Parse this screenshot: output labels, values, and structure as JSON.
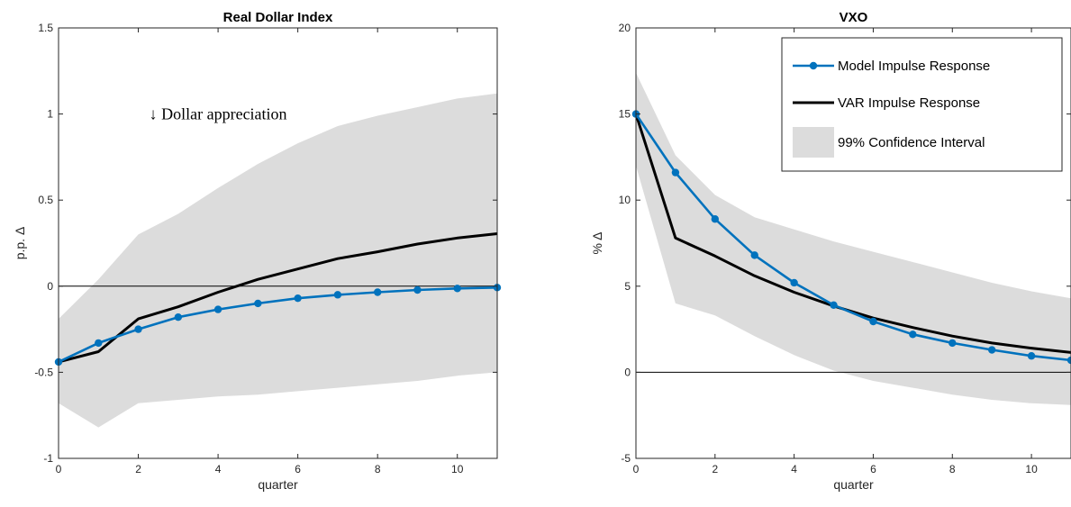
{
  "chart_data": [
    {
      "type": "line",
      "title": "Real Dollar Index",
      "xlabel": "quarter",
      "ylabel": "p.p. Δ",
      "xlim": [
        0,
        11
      ],
      "ylim": [
        -1,
        1.5
      ],
      "xticks": [
        0,
        2,
        4,
        6,
        8,
        10
      ],
      "xtick_labels": [
        "0",
        "2",
        "4",
        "6",
        "8",
        "10"
      ],
      "yticks": [
        -1,
        -0.5,
        0,
        0.5,
        1,
        1.5
      ],
      "ytick_labels": [
        "-1",
        "-0.5",
        "0",
        "0.5",
        "1",
        "1.5"
      ],
      "annotation": "↓ Dollar appreciation",
      "annotation_pos": [
        4,
        1
      ],
      "x": [
        0,
        1,
        2,
        3,
        4,
        5,
        6,
        7,
        8,
        9,
        10,
        11
      ],
      "series": [
        {
          "name": "Model Impulse Response",
          "color": "#0072BD",
          "markers": true,
          "values": [
            -0.44,
            -0.33,
            -0.25,
            -0.18,
            -0.135,
            -0.1,
            -0.07,
            -0.05,
            -0.035,
            -0.022,
            -0.013,
            -0.008
          ]
        },
        {
          "name": "VAR Impulse Response",
          "color": "#000000",
          "markers": false,
          "values": [
            -0.44,
            -0.38,
            -0.19,
            -0.12,
            -0.035,
            0.04,
            0.1,
            0.16,
            0.2,
            0.245,
            0.28,
            0.305
          ]
        }
      ],
      "confidence_interval": {
        "name": "99% Confidence Interval",
        "color": "#dcdcdc",
        "upper": [
          -0.19,
          0.04,
          0.3,
          0.42,
          0.57,
          0.71,
          0.83,
          0.93,
          0.99,
          1.04,
          1.09,
          1.12
        ],
        "lower": [
          -0.68,
          -0.82,
          -0.68,
          -0.66,
          -0.64,
          -0.63,
          -0.61,
          -0.59,
          -0.57,
          -0.55,
          -0.52,
          -0.5
        ]
      },
      "zero_line": true,
      "legend": false,
      "grid": false
    },
    {
      "type": "line",
      "title": "VXO",
      "xlabel": "quarter",
      "ylabel": "% Δ",
      "xlim": [
        0,
        11
      ],
      "ylim": [
        -5,
        20
      ],
      "xticks": [
        0,
        2,
        4,
        6,
        8,
        10
      ],
      "xtick_labels": [
        "0",
        "2",
        "4",
        "6",
        "8",
        "10"
      ],
      "yticks": [
        -5,
        0,
        5,
        10,
        15,
        20
      ],
      "ytick_labels": [
        "-5",
        "0",
        "5",
        "10",
        "15",
        "20"
      ],
      "x": [
        0,
        1,
        2,
        3,
        4,
        5,
        6,
        7,
        8,
        9,
        10,
        11
      ],
      "series": [
        {
          "name": "Model Impulse Response",
          "color": "#0072BD",
          "markers": true,
          "values": [
            15,
            11.6,
            8.9,
            6.8,
            5.2,
            3.9,
            2.95,
            2.2,
            1.7,
            1.3,
            0.95,
            0.7
          ]
        },
        {
          "name": "VAR Impulse Response",
          "color": "#000000",
          "markers": false,
          "values": [
            15,
            7.8,
            6.75,
            5.6,
            4.65,
            3.85,
            3.15,
            2.6,
            2.1,
            1.7,
            1.4,
            1.15
          ]
        }
      ],
      "confidence_interval": {
        "name": "99% Confidence Interval",
        "color": "#dcdcdc",
        "upper": [
          17.4,
          12.6,
          10.3,
          9.0,
          8.3,
          7.6,
          7.0,
          6.4,
          5.8,
          5.2,
          4.7,
          4.3
        ],
        "lower": [
          12.0,
          4.0,
          3.3,
          2.1,
          1.0,
          0.1,
          -0.5,
          -0.9,
          -1.3,
          -1.6,
          -1.8,
          -1.9
        ]
      },
      "zero_line": true,
      "legend": true,
      "legend_position": "top-right",
      "grid": false
    }
  ]
}
